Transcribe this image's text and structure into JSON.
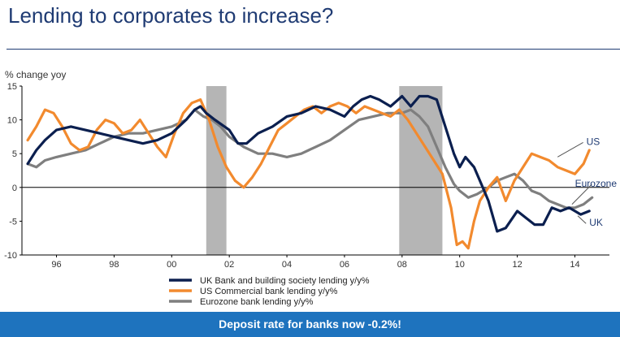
{
  "page": {
    "title": "Lending to corporates to increase?",
    "banner": "Deposit rate for banks now -0.2%!"
  },
  "colors": {
    "title": "#1f3b73",
    "uk": "#0b1f4f",
    "us": "#f28a2e",
    "eurozone": "#7f7f7f",
    "recession": "#b5b5b5",
    "banner": "#1e73be"
  },
  "chart_data": {
    "type": "line",
    "ylabel": "% change yoy",
    "xlim": [
      1994.8,
      2015.2
    ],
    "ylim": [
      -10,
      15
    ],
    "yticks": [
      -10,
      -5,
      0,
      5,
      10,
      15
    ],
    "xticks": [
      {
        "value": 1996,
        "label": "96"
      },
      {
        "value": 1998,
        "label": "98"
      },
      {
        "value": 2000,
        "label": "00"
      },
      {
        "value": 2002,
        "label": "02"
      },
      {
        "value": 2004,
        "label": "04"
      },
      {
        "value": 2006,
        "label": "06"
      },
      {
        "value": 2008,
        "label": "08"
      },
      {
        "value": 2010,
        "label": "10"
      },
      {
        "value": 2012,
        "label": "12"
      },
      {
        "value": 2014,
        "label": "14"
      }
    ],
    "shaded_periods": [
      [
        2001.2,
        2001.9
      ],
      [
        2007.9,
        2009.4
      ]
    ],
    "legend": {
      "placement": "bottom-center"
    },
    "annotations": [
      {
        "text": "US",
        "x": 2014.4,
        "y": 6.3
      },
      {
        "text": "Eurozone",
        "x": 2014.7,
        "y": 0.1
      },
      {
        "text": "UK",
        "x": 2014.5,
        "y": -5.7
      }
    ],
    "series": [
      {
        "name": "UK Bank and building society lending y/y%",
        "color": "#0b1f4f",
        "x": [
          1995.0,
          1995.3,
          1995.6,
          1996.0,
          1996.5,
          1997.0,
          1997.5,
          1998.0,
          1998.5,
          1999.0,
          1999.5,
          2000.0,
          2000.5,
          2000.8,
          2001.0,
          2001.2,
          2001.5,
          2002.0,
          2002.3,
          2002.6,
          2003.0,
          2003.5,
          2004.0,
          2004.5,
          2005.0,
          2005.5,
          2006.0,
          2006.3,
          2006.6,
          2006.9,
          2007.2,
          2007.6,
          2008.0,
          2008.3,
          2008.6,
          2008.9,
          2009.2,
          2009.5,
          2009.8,
          2010.0,
          2010.2,
          2010.5,
          2010.8,
          2011.0,
          2011.3,
          2011.6,
          2012.0,
          2012.3,
          2012.6,
          2012.9,
          2013.2,
          2013.5,
          2013.8,
          2014.0,
          2014.2,
          2014.5
        ],
        "y": [
          3.5,
          5.5,
          7.0,
          8.5,
          9.0,
          8.5,
          8.0,
          7.5,
          7.0,
          6.5,
          7.0,
          8.0,
          10.0,
          11.5,
          12.0,
          11.0,
          10.0,
          8.5,
          6.5,
          6.5,
          8.0,
          9.0,
          10.5,
          11.0,
          12.0,
          11.5,
          10.5,
          12.0,
          13.0,
          13.5,
          13.0,
          12.0,
          13.5,
          12.0,
          13.5,
          13.5,
          13.0,
          9.0,
          5.0,
          3.0,
          4.5,
          3.0,
          0.0,
          -2.0,
          -6.5,
          -6.0,
          -3.5,
          -4.5,
          -5.5,
          -5.5,
          -3.0,
          -3.5,
          -3.0,
          -3.5,
          -4.0,
          -3.5
        ]
      },
      {
        "name": "US Commercial bank lending y/y%",
        "color": "#f28a2e",
        "x": [
          1995.0,
          1995.3,
          1995.6,
          1995.9,
          1996.2,
          1996.5,
          1996.8,
          1997.1,
          1997.4,
          1997.7,
          1998.0,
          1998.3,
          1998.6,
          1998.9,
          1999.2,
          1999.5,
          1999.8,
          2000.1,
          2000.4,
          2000.7,
          2001.0,
          2001.3,
          2001.6,
          2001.9,
          2002.2,
          2002.5,
          2002.8,
          2003.1,
          2003.4,
          2003.7,
          2004.0,
          2004.3,
          2004.6,
          2004.9,
          2005.2,
          2005.5,
          2005.8,
          2006.1,
          2006.4,
          2006.7,
          2007.0,
          2007.3,
          2007.6,
          2007.9,
          2008.2,
          2008.5,
          2008.8,
          2009.1,
          2009.4,
          2009.7,
          2009.9,
          2010.1,
          2010.3,
          2010.5,
          2010.7,
          2011.0,
          2011.3,
          2011.6,
          2011.9,
          2012.2,
          2012.5,
          2012.8,
          2013.1,
          2013.4,
          2013.7,
          2014.0,
          2014.3,
          2014.5
        ],
        "y": [
          7.0,
          9.0,
          11.5,
          11.0,
          9.0,
          6.5,
          5.5,
          6.0,
          8.5,
          10.0,
          9.5,
          8.0,
          8.5,
          10.0,
          8.0,
          6.0,
          4.5,
          8.0,
          11.0,
          12.5,
          13.0,
          10.0,
          6.0,
          3.0,
          1.0,
          0.0,
          1.5,
          3.5,
          6.0,
          8.5,
          9.5,
          10.5,
          11.5,
          12.0,
          11.0,
          12.0,
          12.5,
          12.0,
          11.0,
          12.0,
          11.5,
          11.0,
          10.5,
          11.5,
          10.0,
          8.0,
          6.0,
          4.0,
          2.0,
          -3.0,
          -8.5,
          -8.0,
          -9.0,
          -5.0,
          -2.0,
          0.0,
          1.5,
          -2.0,
          1.0,
          3.0,
          5.0,
          4.5,
          4.0,
          3.0,
          2.5,
          2.0,
          3.5,
          5.5
        ]
      },
      {
        "name": "Eurozone bank lending y/y%",
        "color": "#7f7f7f",
        "x": [
          1995.0,
          1995.3,
          1995.6,
          1996.0,
          1996.5,
          1997.0,
          1997.5,
          1998.0,
          1998.5,
          1999.0,
          1999.5,
          2000.0,
          2000.5,
          2000.8,
          2001.1,
          2001.4,
          2001.7,
          2002.0,
          2002.5,
          2003.0,
          2003.5,
          2004.0,
          2004.5,
          2005.0,
          2005.5,
          2006.0,
          2006.5,
          2007.0,
          2007.5,
          2008.0,
          2008.3,
          2008.6,
          2008.9,
          2009.2,
          2009.5,
          2009.8,
          2010.0,
          2010.3,
          2010.6,
          2011.0,
          2011.3,
          2011.6,
          2011.9,
          2012.2,
          2012.5,
          2012.8,
          2013.1,
          2013.4,
          2013.7,
          2014.0,
          2014.3,
          2014.6
        ],
        "y": [
          3.5,
          3.0,
          4.0,
          4.5,
          5.0,
          5.5,
          6.5,
          7.5,
          8.0,
          8.0,
          8.5,
          9.0,
          10.0,
          11.5,
          10.5,
          10.0,
          9.0,
          7.5,
          6.0,
          5.0,
          5.0,
          4.5,
          5.0,
          6.0,
          7.0,
          8.5,
          10.0,
          10.5,
          11.0,
          11.0,
          11.5,
          10.5,
          9.0,
          6.0,
          3.0,
          0.5,
          -0.5,
          -1.5,
          -1.0,
          0.0,
          1.0,
          1.5,
          2.0,
          1.0,
          -0.5,
          -1.0,
          -2.0,
          -2.5,
          -3.0,
          -3.0,
          -2.5,
          -1.5
        ]
      }
    ]
  }
}
